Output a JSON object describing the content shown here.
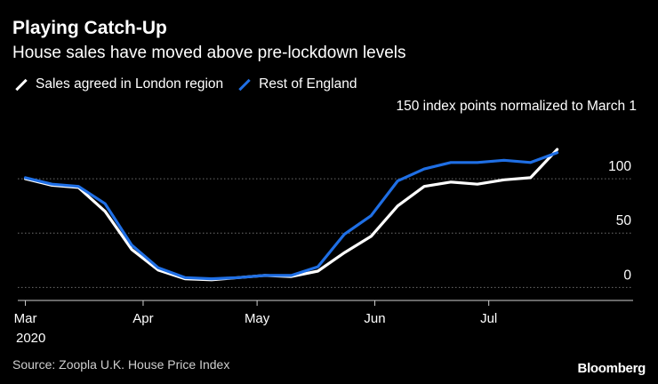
{
  "header": {
    "title": "Playing Catch-Up",
    "subtitle": "House sales have moved above pre-lockdown levels"
  },
  "footer": {
    "source": "Source: Zoopla U.K. House Price Index",
    "brand": "Bloomberg"
  },
  "colors": {
    "background": "#000000",
    "london": "#ffffff",
    "rest_of_england": "#1f6fe5",
    "grid": "#6e6e6e",
    "text": "#ffffff"
  },
  "chart_data": {
    "type": "line",
    "title": "Playing Catch-Up",
    "subtitle": "House sales have moved above pre-lockdown levels",
    "units_label": "150 index points normalized to March 1",
    "x_tick_labels": [
      "Mar",
      "Apr",
      "May",
      "Jun",
      "Jul"
    ],
    "year_label": "2020",
    "x_ticks": [
      "2020-03-01",
      "2020-04-01",
      "2020-05-01",
      "2020-06-01",
      "2020-07-01"
    ],
    "x_range": [
      "2020-02-28",
      "2020-08-08"
    ],
    "y_ticks": [
      0,
      50,
      100
    ],
    "ylim": [
      -12,
      150
    ],
    "grid": true,
    "legend_position": "top-left",
    "series": [
      {
        "name": "Sales agreed in London region",
        "color": "#ffffff",
        "x": [
          "2020-03-01",
          "2020-03-08",
          "2020-03-15",
          "2020-03-22",
          "2020-03-29",
          "2020-04-05",
          "2020-04-12",
          "2020-04-19",
          "2020-04-26",
          "2020-05-03",
          "2020-05-10",
          "2020-05-17",
          "2020-05-24",
          "2020-05-31",
          "2020-06-07",
          "2020-06-14",
          "2020-06-21",
          "2020-06-28",
          "2020-07-05",
          "2020-07-12",
          "2020-07-19"
        ],
        "values": [
          100,
          94,
          92,
          70,
          35,
          16,
          8,
          7,
          9,
          11,
          10,
          15,
          32,
          47,
          75,
          93,
          97,
          95,
          99,
          101,
          127
        ]
      },
      {
        "name": "Rest of England",
        "color": "#1f6fe5",
        "x": [
          "2020-03-01",
          "2020-03-08",
          "2020-03-15",
          "2020-03-22",
          "2020-03-29",
          "2020-04-05",
          "2020-04-12",
          "2020-04-19",
          "2020-04-26",
          "2020-05-03",
          "2020-05-10",
          "2020-05-17",
          "2020-05-24",
          "2020-05-31",
          "2020-06-07",
          "2020-06-14",
          "2020-06-21",
          "2020-06-28",
          "2020-07-05",
          "2020-07-12",
          "2020-07-19"
        ],
        "values": [
          101,
          95,
          93,
          77,
          39,
          18,
          9,
          8,
          9,
          11,
          11,
          19,
          49,
          66,
          98,
          109,
          115,
          115,
          117,
          115,
          124
        ]
      }
    ]
  }
}
